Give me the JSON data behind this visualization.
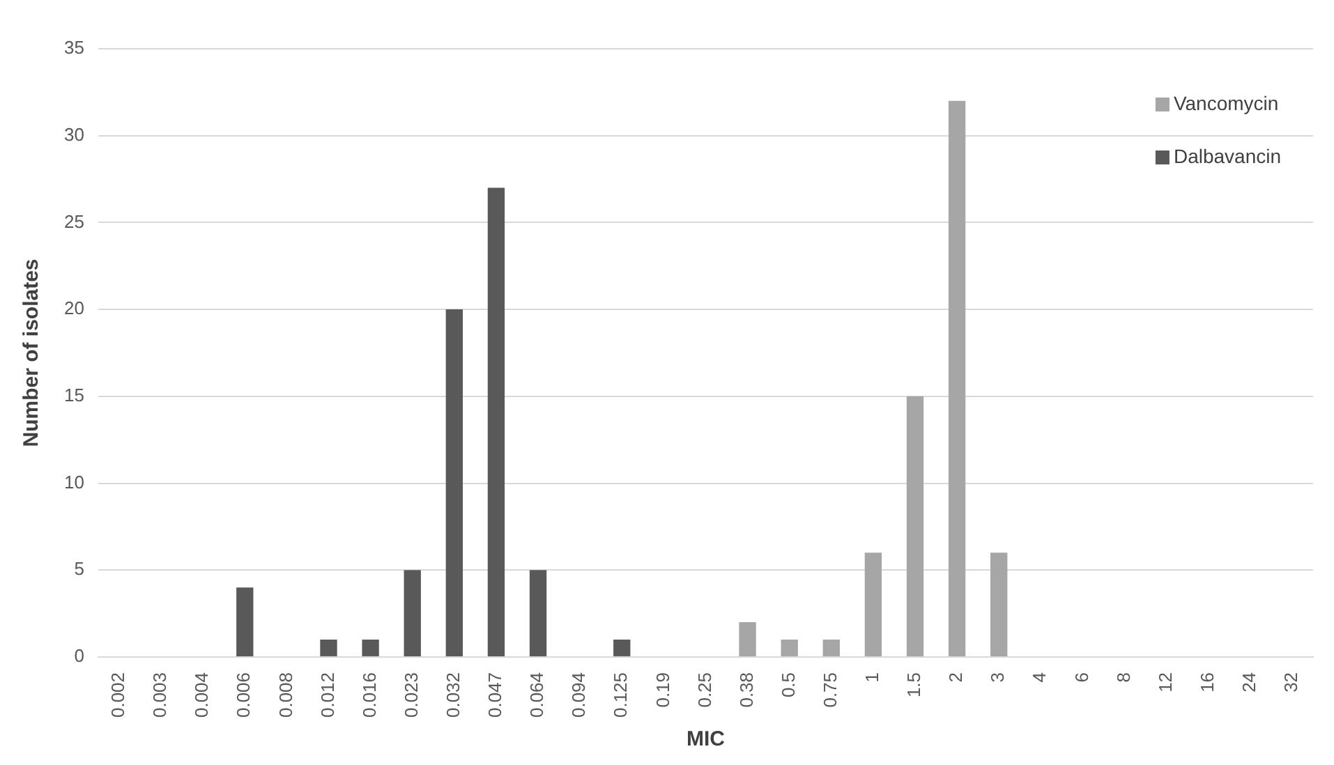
{
  "chart_data": {
    "type": "bar",
    "xlabel": "MIC",
    "ylabel": "Number of isolates",
    "categories": [
      "0.002",
      "0.003",
      "0.004",
      "0.006",
      "0.008",
      "0.012",
      "0.016",
      "0.023",
      "0.032",
      "0.047",
      "0.064",
      "0.094",
      "0.125",
      "0.19",
      "0.25",
      "0.38",
      "0.5",
      "0.75",
      "1",
      "1.5",
      "2",
      "3",
      "4",
      "6",
      "8",
      "12",
      "16",
      "24",
      "32"
    ],
    "series": [
      {
        "name": "Vancomycin",
        "color": "#a6a6a6",
        "values": [
          null,
          null,
          null,
          null,
          null,
          null,
          null,
          null,
          null,
          null,
          null,
          null,
          null,
          null,
          null,
          2,
          1,
          1,
          6,
          15,
          32,
          6,
          null,
          null,
          null,
          null,
          null,
          null,
          null
        ]
      },
      {
        "name": "Dalbavancin",
        "color": "#595959",
        "values": [
          null,
          null,
          null,
          4,
          null,
          1,
          1,
          5,
          20,
          27,
          5,
          null,
          1,
          null,
          null,
          null,
          null,
          null,
          null,
          null,
          null,
          null,
          null,
          null,
          null,
          null,
          null,
          null,
          null
        ]
      }
    ],
    "ylim": [
      0,
      35
    ],
    "yticks": [
      0,
      5,
      10,
      15,
      20,
      25,
      30,
      35
    ],
    "grid": "y",
    "legend": "top right"
  }
}
